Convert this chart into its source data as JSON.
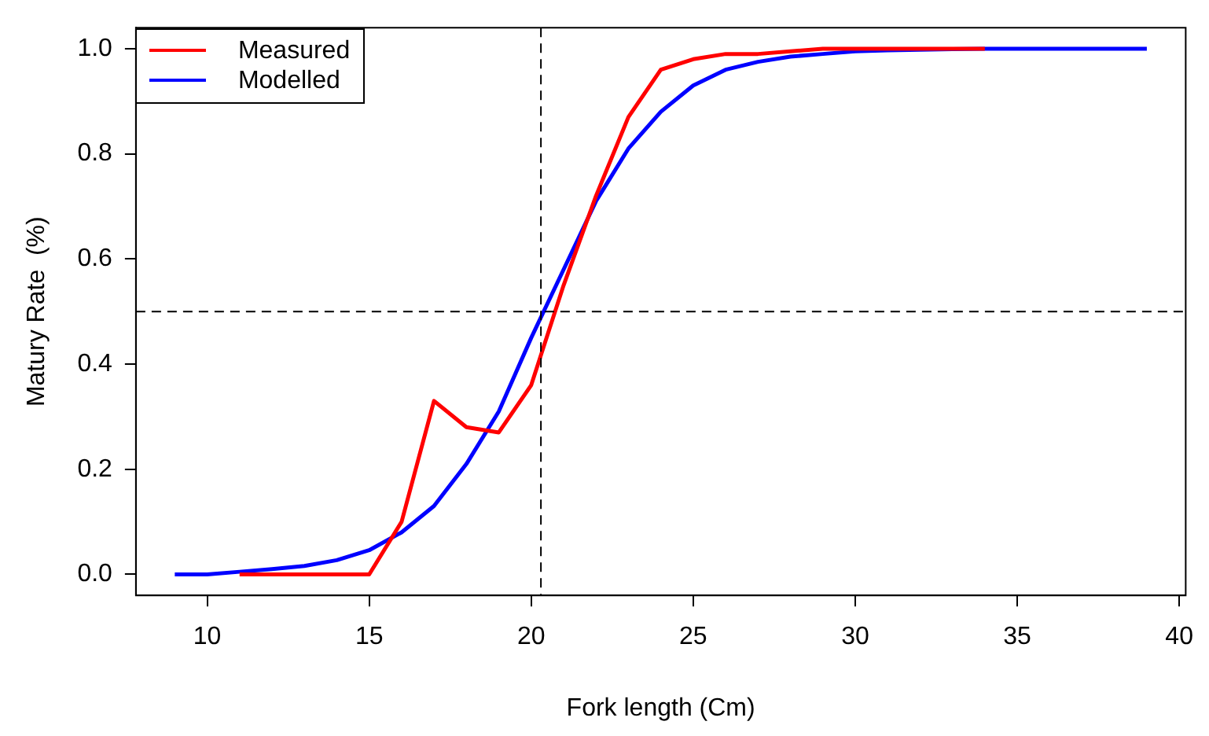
{
  "chart_data": {
    "type": "line",
    "xlabel": "Fork length (Cm)",
    "ylabel": "Matury Rate  (%)",
    "xlim": [
      7.8,
      40.2
    ],
    "xticks": [
      10,
      15,
      20,
      25,
      30,
      35,
      40
    ],
    "ylim": [
      -0.04,
      1.04
    ],
    "yticks": [
      {
        "value": 0,
        "label": "0.0"
      },
      {
        "value": 0.2,
        "label": "0.2"
      },
      {
        "value": 0.4,
        "label": "0.4"
      },
      {
        "value": 0.6,
        "label": "0.6"
      },
      {
        "value": 0.8,
        "label": "0.8"
      },
      {
        "value": 1,
        "label": "1.0"
      }
    ],
    "grid": false,
    "legend": "top left",
    "marker": "none",
    "line_style": "solid",
    "ref_lines": [
      {
        "axis": "x",
        "value": 20.3,
        "line_style": "dashed",
        "color": "#000000"
      },
      {
        "axis": "y",
        "value": 0.5,
        "line_style": "dashed",
        "color": "#000000"
      }
    ],
    "series": [
      {
        "name": "Measured",
        "color": "#ff0000",
        "x": [
          11,
          12,
          13,
          14,
          15,
          16,
          17,
          18,
          19,
          20,
          21,
          22,
          23,
          24,
          25,
          26,
          27,
          28,
          29,
          30,
          31,
          32,
          33,
          34
        ],
        "values": [
          0,
          0,
          0,
          0,
          0,
          0.1,
          0.33,
          0.28,
          0.27,
          0.36,
          0.55,
          0.72,
          0.87,
          0.96,
          0.98,
          0.99,
          0.99,
          0.995,
          1,
          1,
          1,
          1,
          1,
          1
        ]
      },
      {
        "name": "Modelled",
        "color": "#0000ff",
        "x": [
          9,
          10,
          11,
          12,
          13,
          14,
          15,
          16,
          17,
          18,
          19,
          20,
          21,
          22,
          23,
          24,
          25,
          26,
          27,
          28,
          29,
          30,
          31,
          32,
          33,
          34,
          35,
          36,
          37,
          38,
          39
        ],
        "values": [
          0,
          0,
          0.005,
          0.01,
          0.016,
          0.027,
          0.046,
          0.08,
          0.13,
          0.21,
          0.31,
          0.45,
          0.58,
          0.71,
          0.81,
          0.88,
          0.93,
          0.96,
          0.975,
          0.985,
          0.99,
          0.995,
          0.997,
          0.998,
          0.999,
          1,
          1,
          1,
          1,
          1,
          1
        ]
      }
    ]
  }
}
